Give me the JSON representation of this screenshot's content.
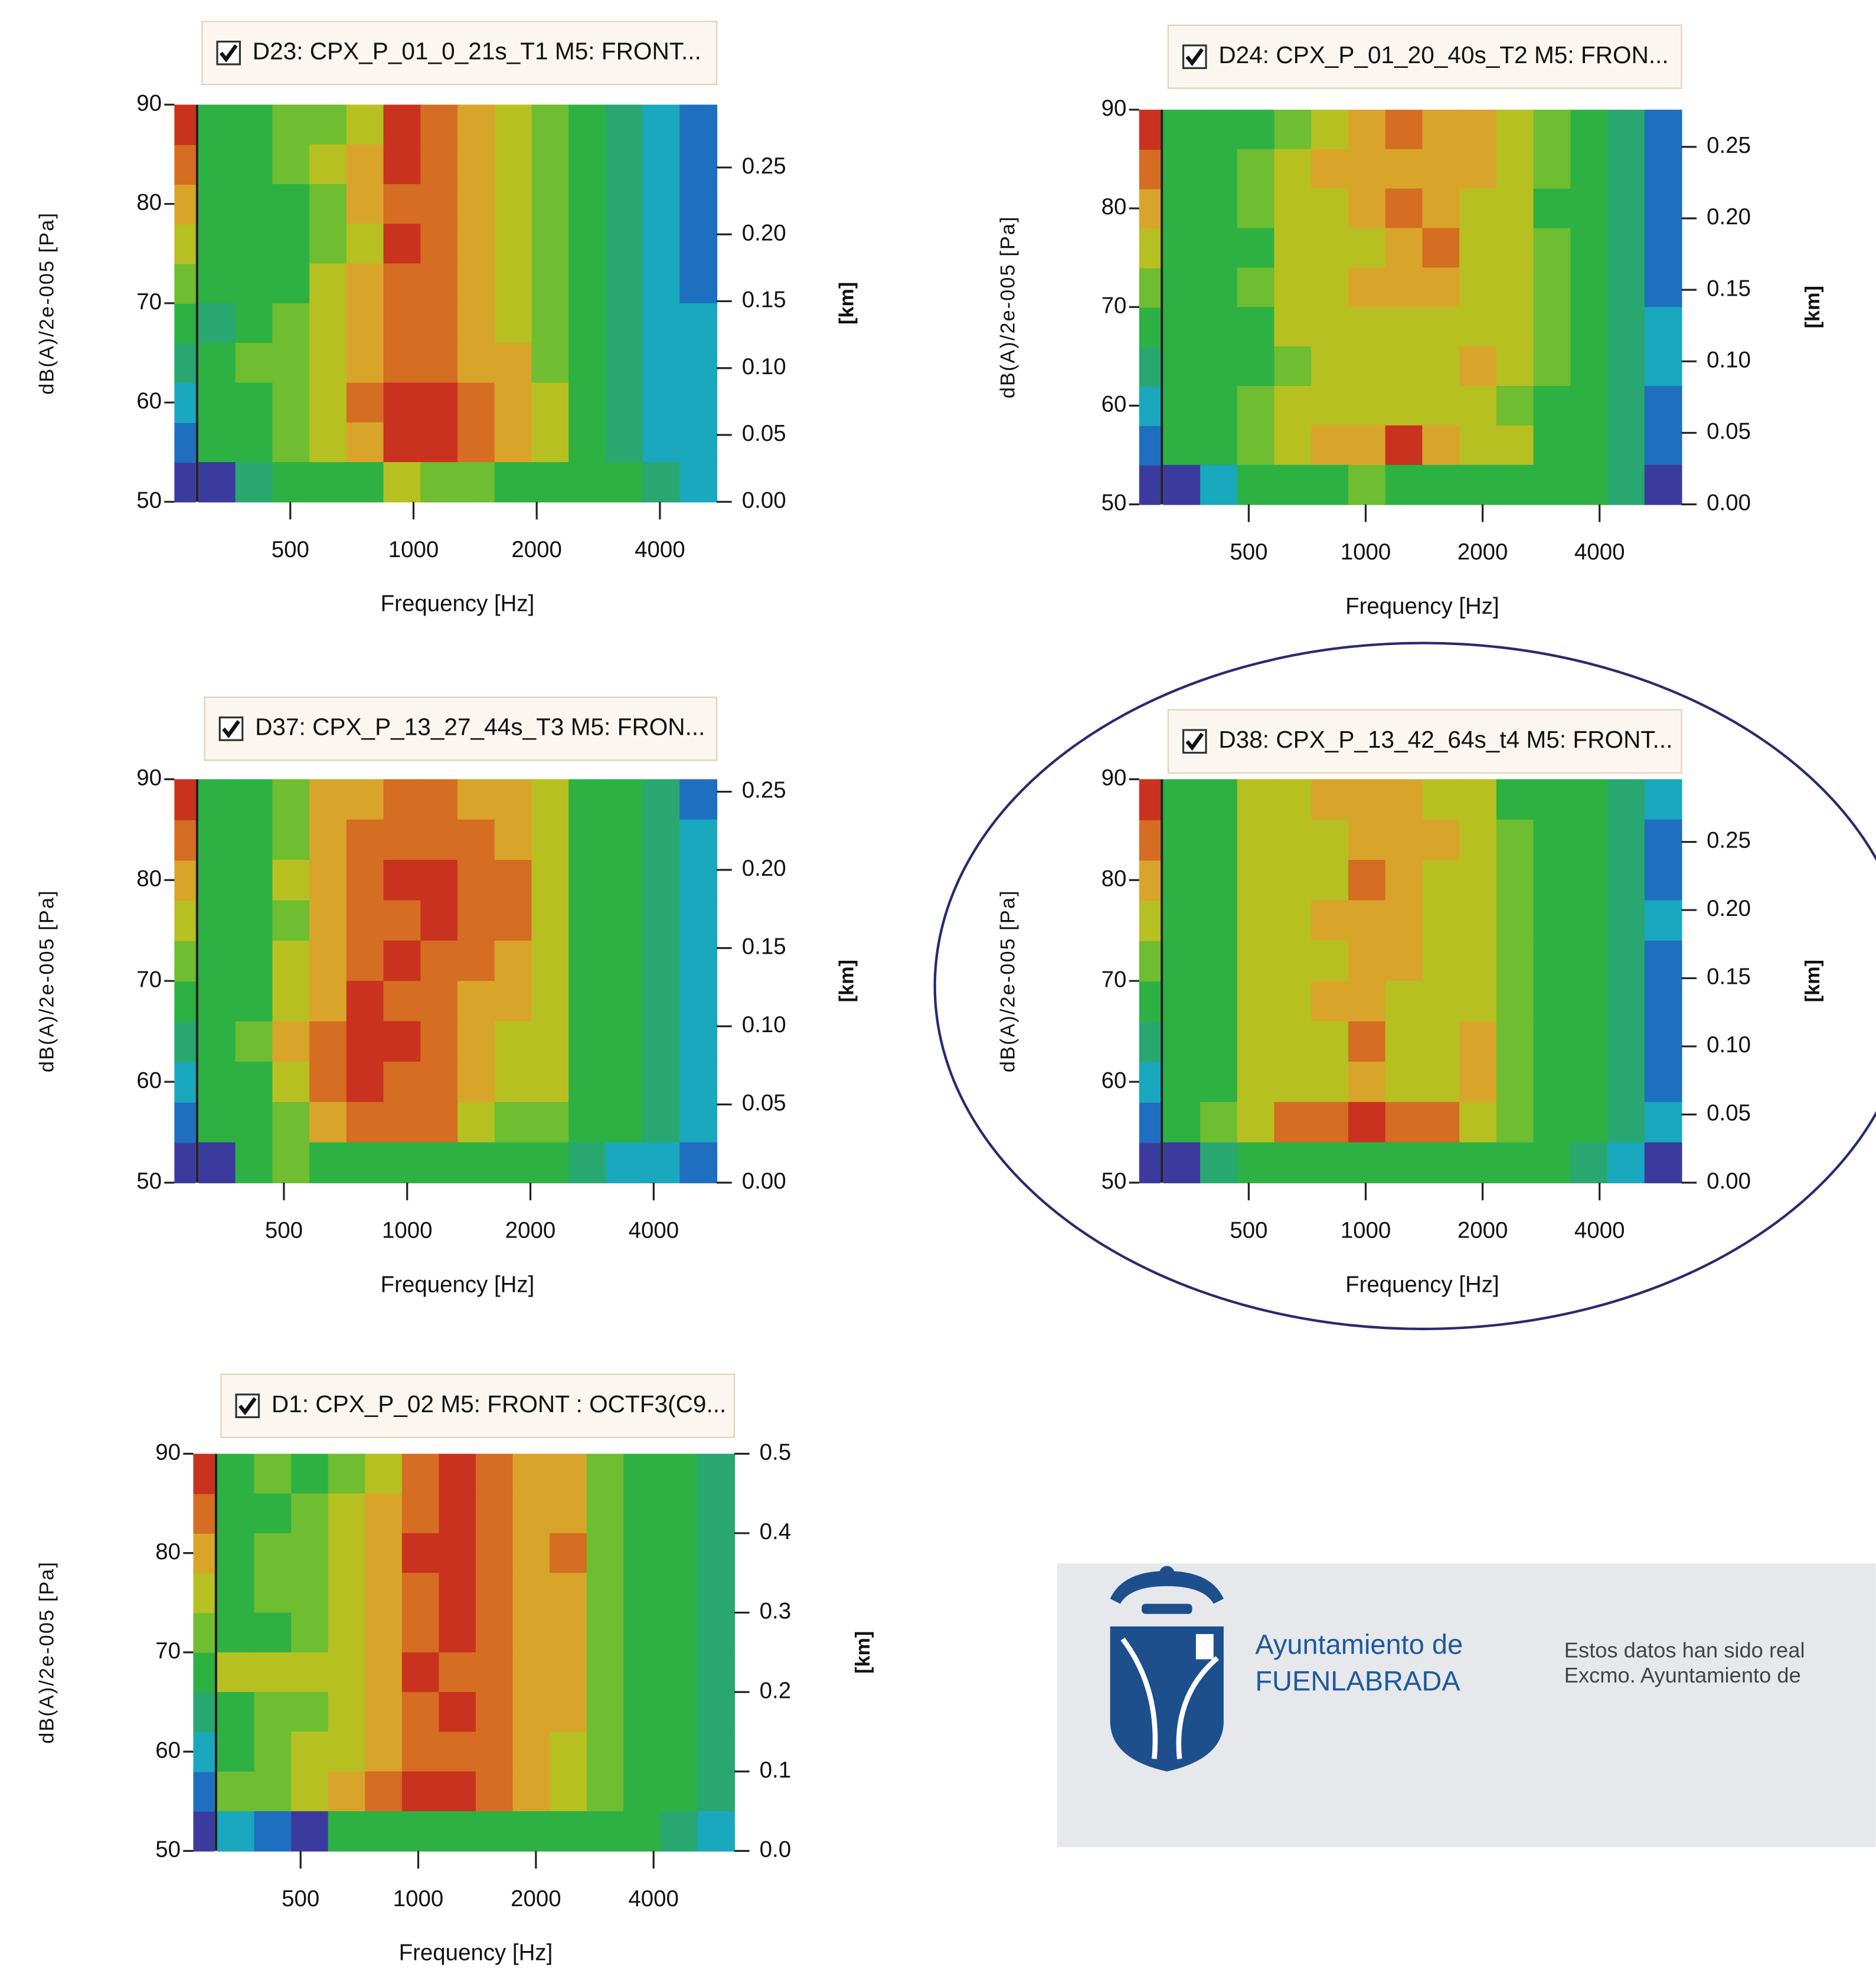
{
  "chart_data": [
    {
      "type": "heatmap",
      "title": "D23: CPX_P_01_0_21s_T1  M5: FRONT...",
      "xlabel": "Frequency [Hz]",
      "ylabel": "dB(A)/2e-005 [Pa]",
      "y2label": "[km]",
      "xscale": "log",
      "xlim": [
        298,
        5505
      ],
      "xticks": [
        500,
        1000,
        2000,
        4000
      ],
      "ylim": [
        50,
        90
      ],
      "yticks": [
        50,
        60,
        70,
        80,
        90
      ],
      "y2lim": [
        0,
        0.297
      ],
      "y2ticks": [
        {
          "value": 0,
          "label": "0.00"
        },
        0.05,
        {
          "value": 0.1,
          "label": "0.10"
        },
        0.15,
        {
          "value": 0.2,
          "label": "0.20"
        },
        0.25
      ],
      "colors": [
        "#3b3b9e",
        "#1e6fc0",
        "#19a8bd",
        "#28a870",
        "#2db143",
        "#6fbd30",
        "#b7c021",
        "#d8a52a",
        "#d56d22",
        "#c9321e"
      ],
      "z": [
        [
          4,
          4,
          5,
          5,
          6,
          9,
          8,
          7,
          6,
          5,
          4,
          3,
          2,
          1
        ],
        [
          4,
          4,
          5,
          6,
          7,
          9,
          8,
          7,
          6,
          5,
          4,
          3,
          2,
          1
        ],
        [
          4,
          4,
          4,
          5,
          7,
          8,
          8,
          7,
          6,
          5,
          4,
          3,
          2,
          1
        ],
        [
          4,
          4,
          4,
          5,
          6,
          9,
          8,
          7,
          6,
          5,
          4,
          3,
          2,
          1
        ],
        [
          4,
          4,
          4,
          6,
          7,
          8,
          8,
          7,
          6,
          5,
          4,
          3,
          2,
          1
        ],
        [
          3,
          4,
          5,
          6,
          7,
          8,
          8,
          7,
          6,
          5,
          4,
          3,
          2,
          2
        ],
        [
          4,
          5,
          5,
          6,
          7,
          8,
          8,
          7,
          7,
          5,
          4,
          3,
          2,
          2
        ],
        [
          4,
          4,
          5,
          6,
          8,
          9,
          9,
          8,
          7,
          6,
          4,
          3,
          2,
          2
        ],
        [
          4,
          4,
          5,
          6,
          7,
          9,
          9,
          8,
          7,
          6,
          4,
          3,
          2,
          2
        ],
        [
          0,
          3,
          4,
          4,
          4,
          6,
          5,
          5,
          4,
          4,
          4,
          4,
          3,
          2
        ]
      ]
    },
    {
      "type": "heatmap",
      "title": "D24: CPX_P_01_20_40s_T2  M5: FRON...",
      "xlabel": "Frequency [Hz]",
      "ylabel": "dB(A)/2e-005 [Pa]",
      "y2label": "[km]",
      "xscale": "log",
      "xlim": [
        301,
        6500
      ],
      "xticks": [
        500,
        1000,
        2000,
        4000
      ],
      "ylim": [
        50,
        90
      ],
      "yticks": [
        50,
        60,
        70,
        80,
        90
      ],
      "y2lim": [
        0,
        0.276
      ],
      "y2ticks": [
        {
          "value": 0,
          "label": "0.00"
        },
        0.05,
        {
          "value": 0.1,
          "label": "0.10"
        },
        0.15,
        {
          "value": 0.2,
          "label": "0.20"
        },
        0.25
      ],
      "colors": [
        "#3b3b9e",
        "#1e6fc0",
        "#19a8bd",
        "#28a870",
        "#2db143",
        "#6fbd30",
        "#b7c021",
        "#d8a52a",
        "#d56d22",
        "#c9321e"
      ],
      "z": [
        [
          4,
          4,
          4,
          5,
          6,
          7,
          8,
          7,
          7,
          6,
          5,
          4,
          3,
          1
        ],
        [
          4,
          4,
          5,
          6,
          7,
          7,
          7,
          7,
          7,
          6,
          5,
          4,
          3,
          1
        ],
        [
          4,
          4,
          5,
          6,
          6,
          7,
          8,
          7,
          6,
          6,
          4,
          4,
          3,
          1
        ],
        [
          4,
          4,
          4,
          6,
          6,
          6,
          7,
          8,
          6,
          6,
          5,
          4,
          3,
          1
        ],
        [
          4,
          4,
          5,
          6,
          6,
          7,
          7,
          7,
          6,
          6,
          5,
          4,
          3,
          1
        ],
        [
          4,
          4,
          4,
          6,
          6,
          6,
          6,
          6,
          6,
          6,
          5,
          4,
          3,
          2
        ],
        [
          4,
          4,
          4,
          5,
          6,
          6,
          6,
          6,
          7,
          6,
          5,
          4,
          3,
          2
        ],
        [
          4,
          4,
          5,
          6,
          6,
          6,
          6,
          6,
          6,
          5,
          4,
          4,
          3,
          1
        ],
        [
          4,
          4,
          5,
          6,
          7,
          7,
          9,
          7,
          6,
          6,
          4,
          4,
          3,
          1
        ],
        [
          0,
          2,
          4,
          4,
          4,
          5,
          4,
          4,
          4,
          4,
          4,
          4,
          3,
          0
        ]
      ]
    },
    {
      "type": "heatmap",
      "title": "D37: CPX_P_13_27_44s_T3  M5: FRON...",
      "xlabel": "Frequency [Hz]",
      "ylabel": "dB(A)/2e-005 [Pa]",
      "y2label": "[km]",
      "xscale": "log",
      "xlim": [
        309,
        5700
      ],
      "xticks": [
        500,
        1000,
        2000,
        4000
      ],
      "ylim": [
        50,
        90
      ],
      "yticks": [
        50,
        60,
        70,
        80,
        90
      ],
      "y2lim": [
        0,
        0.258
      ],
      "y2ticks": [
        {
          "value": 0,
          "label": "0.00"
        },
        0.05,
        {
          "value": 0.1,
          "label": "0.10"
        },
        0.15,
        {
          "value": 0.2,
          "label": "0.20"
        },
        0.25
      ],
      "colors": [
        "#3b3b9e",
        "#1e6fc0",
        "#19a8bd",
        "#28a870",
        "#2db143",
        "#6fbd30",
        "#b7c021",
        "#d8a52a",
        "#d56d22",
        "#c9321e"
      ],
      "z": [
        [
          4,
          4,
          5,
          7,
          7,
          8,
          8,
          7,
          7,
          6,
          4,
          4,
          3,
          1
        ],
        [
          4,
          4,
          5,
          7,
          8,
          8,
          8,
          8,
          7,
          6,
          4,
          4,
          3,
          2
        ],
        [
          4,
          4,
          6,
          7,
          8,
          9,
          9,
          8,
          8,
          6,
          4,
          4,
          3,
          2
        ],
        [
          4,
          4,
          5,
          7,
          8,
          8,
          9,
          8,
          8,
          6,
          4,
          4,
          3,
          2
        ],
        [
          4,
          4,
          6,
          7,
          8,
          9,
          8,
          8,
          7,
          6,
          4,
          4,
          3,
          2
        ],
        [
          4,
          4,
          6,
          7,
          9,
          8,
          8,
          7,
          7,
          6,
          4,
          4,
          3,
          2
        ],
        [
          4,
          5,
          7,
          8,
          9,
          9,
          8,
          7,
          6,
          6,
          4,
          4,
          3,
          2
        ],
        [
          4,
          4,
          6,
          8,
          9,
          8,
          8,
          7,
          6,
          6,
          4,
          4,
          3,
          2
        ],
        [
          4,
          4,
          5,
          7,
          8,
          8,
          8,
          6,
          5,
          5,
          4,
          4,
          3,
          2
        ],
        [
          0,
          4,
          5,
          4,
          4,
          4,
          4,
          4,
          4,
          4,
          3,
          2,
          2,
          1
        ]
      ]
    },
    {
      "type": "heatmap",
      "title": "D38: CPX_P_13_42_64s_t4  M5: FRONT...",
      "xlabel": "Frequency [Hz]",
      "ylabel": "dB(A)/2e-005 [Pa]",
      "y2label": "[km]",
      "xscale": "log",
      "xlim": [
        301,
        6500
      ],
      "xticks": [
        500,
        1000,
        2000,
        4000
      ],
      "ylim": [
        50,
        90
      ],
      "yticks": [
        50,
        60,
        70,
        80,
        90
      ],
      "y2lim": [
        0,
        0.296
      ],
      "y2ticks": [
        {
          "value": 0,
          "label": "0.00"
        },
        0.05,
        {
          "value": 0.1,
          "label": "0.10"
        },
        0.15,
        {
          "value": 0.2,
          "label": "0.20"
        },
        0.25
      ],
      "colors": [
        "#3b3b9e",
        "#1e6fc0",
        "#19a8bd",
        "#28a870",
        "#2db143",
        "#6fbd30",
        "#b7c021",
        "#d8a52a",
        "#d56d22",
        "#c9321e"
      ],
      "z": [
        [
          4,
          4,
          6,
          6,
          7,
          7,
          7,
          6,
          6,
          4,
          4,
          4,
          3,
          2
        ],
        [
          4,
          4,
          6,
          6,
          6,
          7,
          7,
          7,
          6,
          5,
          4,
          4,
          3,
          1
        ],
        [
          4,
          4,
          6,
          6,
          6,
          8,
          7,
          6,
          6,
          5,
          4,
          4,
          3,
          1
        ],
        [
          4,
          4,
          6,
          6,
          7,
          7,
          7,
          6,
          6,
          5,
          4,
          4,
          3,
          2
        ],
        [
          4,
          4,
          6,
          6,
          6,
          7,
          7,
          6,
          6,
          5,
          4,
          4,
          3,
          1
        ],
        [
          4,
          4,
          6,
          6,
          7,
          7,
          6,
          6,
          6,
          5,
          4,
          4,
          3,
          1
        ],
        [
          4,
          4,
          6,
          6,
          6,
          8,
          6,
          6,
          7,
          5,
          4,
          4,
          3,
          1
        ],
        [
          4,
          4,
          6,
          6,
          6,
          7,
          6,
          6,
          7,
          5,
          4,
          4,
          3,
          1
        ],
        [
          4,
          5,
          6,
          8,
          8,
          9,
          8,
          8,
          6,
          5,
          4,
          4,
          3,
          2
        ],
        [
          0,
          3,
          4,
          4,
          4,
          4,
          4,
          4,
          4,
          4,
          4,
          3,
          2,
          0
        ]
      ]
    },
    {
      "type": "heatmap",
      "title": "D1: CPX_P_02  M5: FRONT : OCTF3(C9...",
      "xlabel": "Frequency [Hz]",
      "ylabel": "dB(A)/2e-005 [Pa]",
      "y2label": "[km]",
      "xscale": "log",
      "xlim": [
        306,
        6436
      ],
      "xticks": [
        500,
        1000,
        2000,
        4000
      ],
      "ylim": [
        50,
        90
      ],
      "yticks": [
        50,
        60,
        70,
        80,
        90
      ],
      "y2lim": [
        0,
        0.5
      ],
      "y2ticks": [
        {
          "value": 0,
          "label": "0.0"
        },
        0.1,
        0.2,
        0.3,
        0.4,
        0.5
      ],
      "colors": [
        "#3b3b9e",
        "#1e6fc0",
        "#19a8bd",
        "#28a870",
        "#2db143",
        "#6fbd30",
        "#b7c021",
        "#d8a52a",
        "#d56d22",
        "#c9321e"
      ],
      "z": [
        [
          4,
          5,
          4,
          5,
          6,
          8,
          9,
          8,
          7,
          7,
          5,
          4,
          4,
          3
        ],
        [
          4,
          4,
          5,
          6,
          7,
          8,
          9,
          8,
          7,
          7,
          5,
          4,
          4,
          3
        ],
        [
          4,
          5,
          5,
          6,
          7,
          9,
          9,
          8,
          7,
          8,
          5,
          4,
          4,
          3
        ],
        [
          4,
          5,
          5,
          6,
          7,
          8,
          9,
          8,
          7,
          7,
          5,
          4,
          4,
          3
        ],
        [
          4,
          4,
          5,
          6,
          7,
          8,
          9,
          8,
          7,
          7,
          5,
          4,
          4,
          3
        ],
        [
          6,
          6,
          6,
          6,
          7,
          9,
          8,
          8,
          7,
          7,
          5,
          4,
          4,
          3
        ],
        [
          4,
          5,
          5,
          6,
          7,
          8,
          9,
          8,
          7,
          7,
          5,
          4,
          4,
          3
        ],
        [
          4,
          5,
          6,
          6,
          7,
          8,
          8,
          8,
          7,
          6,
          5,
          4,
          4,
          3
        ],
        [
          5,
          5,
          6,
          7,
          8,
          9,
          9,
          8,
          7,
          6,
          5,
          4,
          4,
          3
        ],
        [
          2,
          1,
          0,
          4,
          4,
          4,
          4,
          4,
          4,
          4,
          4,
          4,
          3,
          2
        ]
      ]
    }
  ],
  "logo": {
    "line1": "Ayuntamiento de",
    "line2": "FUENLABRADA"
  },
  "notice": [
    "Estos datos han sido real",
    "Excmo. Ayuntamiento de"
  ]
}
